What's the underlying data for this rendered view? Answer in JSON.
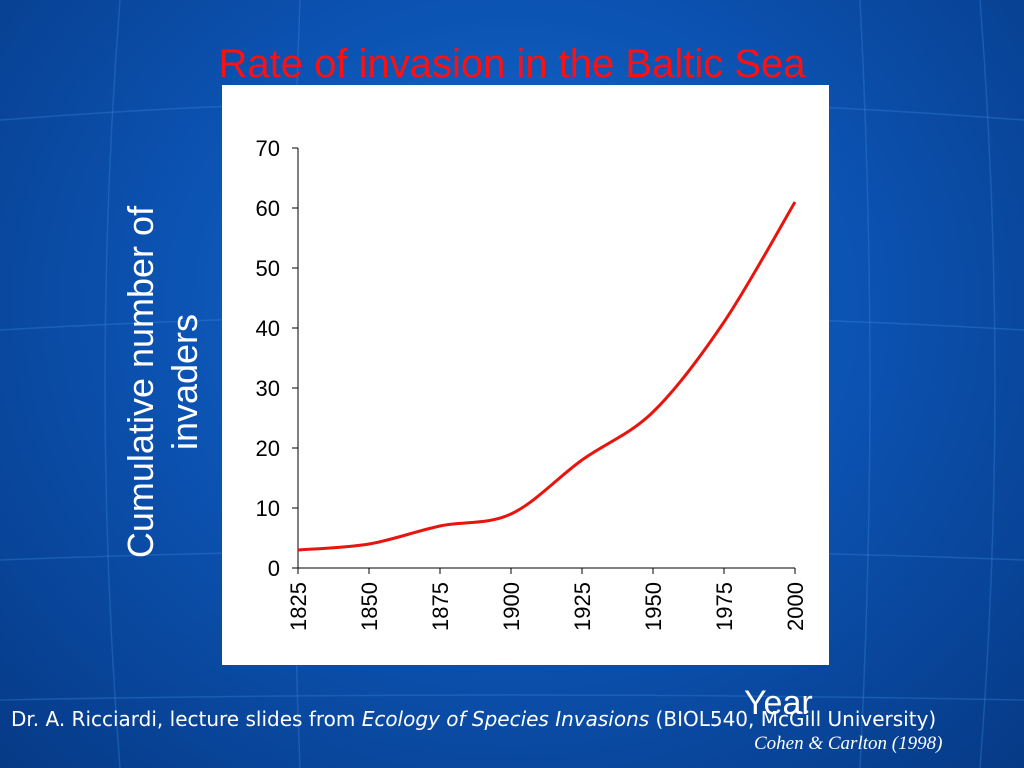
{
  "slide": {
    "title": "Rate of invasion in the Baltic Sea",
    "credit_prefix": "Dr. A. Ricciardi, lecture slides from ",
    "credit_italic": "Ecology of Species Invasions",
    "credit_suffix": " (BIOL540, McGill University)",
    "source": "Cohen & Carlton (1998)"
  },
  "colors": {
    "title": "#ff1010",
    "line": "#e8140e",
    "background": "#0c54b4",
    "panel": "#ffffff"
  },
  "chart_data": {
    "type": "line",
    "title": "Rate of invasion in the Baltic Sea",
    "xlabel": "Year",
    "ylabel": "Cumulative number of invaders",
    "xlim": [
      1825,
      2000
    ],
    "ylim": [
      0,
      70
    ],
    "x_ticks": [
      1825,
      1850,
      1875,
      1900,
      1925,
      1950,
      1975,
      2000
    ],
    "y_ticks": [
      0,
      10,
      20,
      30,
      40,
      50,
      60,
      70
    ],
    "grid": false,
    "series": [
      {
        "x": [
          1825,
          1850,
          1875,
          1900,
          1925,
          1950,
          1975,
          2000
        ],
        "values": [
          3,
          4,
          7,
          9,
          18,
          26,
          41,
          61
        ]
      }
    ]
  }
}
